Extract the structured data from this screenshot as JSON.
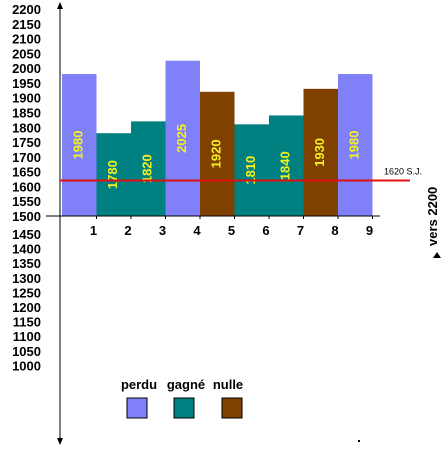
{
  "chart_data": {
    "type": "bar",
    "categories": [
      "1",
      "2",
      "3",
      "4",
      "5",
      "6",
      "7",
      "8",
      "9"
    ],
    "bars": [
      {
        "label": "1980",
        "value": 1980,
        "result": "perdu"
      },
      {
        "label": "1780",
        "value": 1780,
        "result": "gagné"
      },
      {
        "label": "1820",
        "value": 1820,
        "result": "gagné"
      },
      {
        "label": "2025",
        "value": 2025,
        "result": "perdu"
      },
      {
        "label": "1920",
        "value": 1920,
        "result": "nulle"
      },
      {
        "label": "1810",
        "value": 1810,
        "result": "gagné"
      },
      {
        "label": "1840",
        "value": 1840,
        "result": "gagné"
      },
      {
        "label": "1930",
        "value": 1930,
        "result": "nulle"
      },
      {
        "label": "1980",
        "value": 1980,
        "result": "perdu"
      }
    ],
    "y_ticks_upper": [
      "2200",
      "2150",
      "2100",
      "2050",
      "2000",
      "1950",
      "1900",
      "1850",
      "1800",
      "1750",
      "1700",
      "1650",
      "1600",
      "1550",
      "1500"
    ],
    "y_ticks_lower": [
      "1450",
      "1400",
      "1350",
      "1300",
      "1250",
      "1200",
      "1150",
      "1100",
      "1050",
      "1000"
    ],
    "x_ticks": [
      "1",
      "2",
      "3",
      "4",
      "5",
      "6",
      "7",
      "8",
      "9"
    ],
    "ylim": [
      1500,
      2200
    ],
    "reference_line": {
      "value": 1620,
      "label": "1620 S.J.",
      "color": "#e01010"
    },
    "axis_title": "vers 2200",
    "legend": [
      {
        "key": "perdu",
        "label": "perdu",
        "color": "#8080f8"
      },
      {
        "key": "gagné",
        "label": "gagné",
        "color": "#008080"
      },
      {
        "key": "nulle",
        "label": "nulle",
        "color": "#804000"
      }
    ],
    "grid": false,
    "legend_placement": "bottom"
  }
}
